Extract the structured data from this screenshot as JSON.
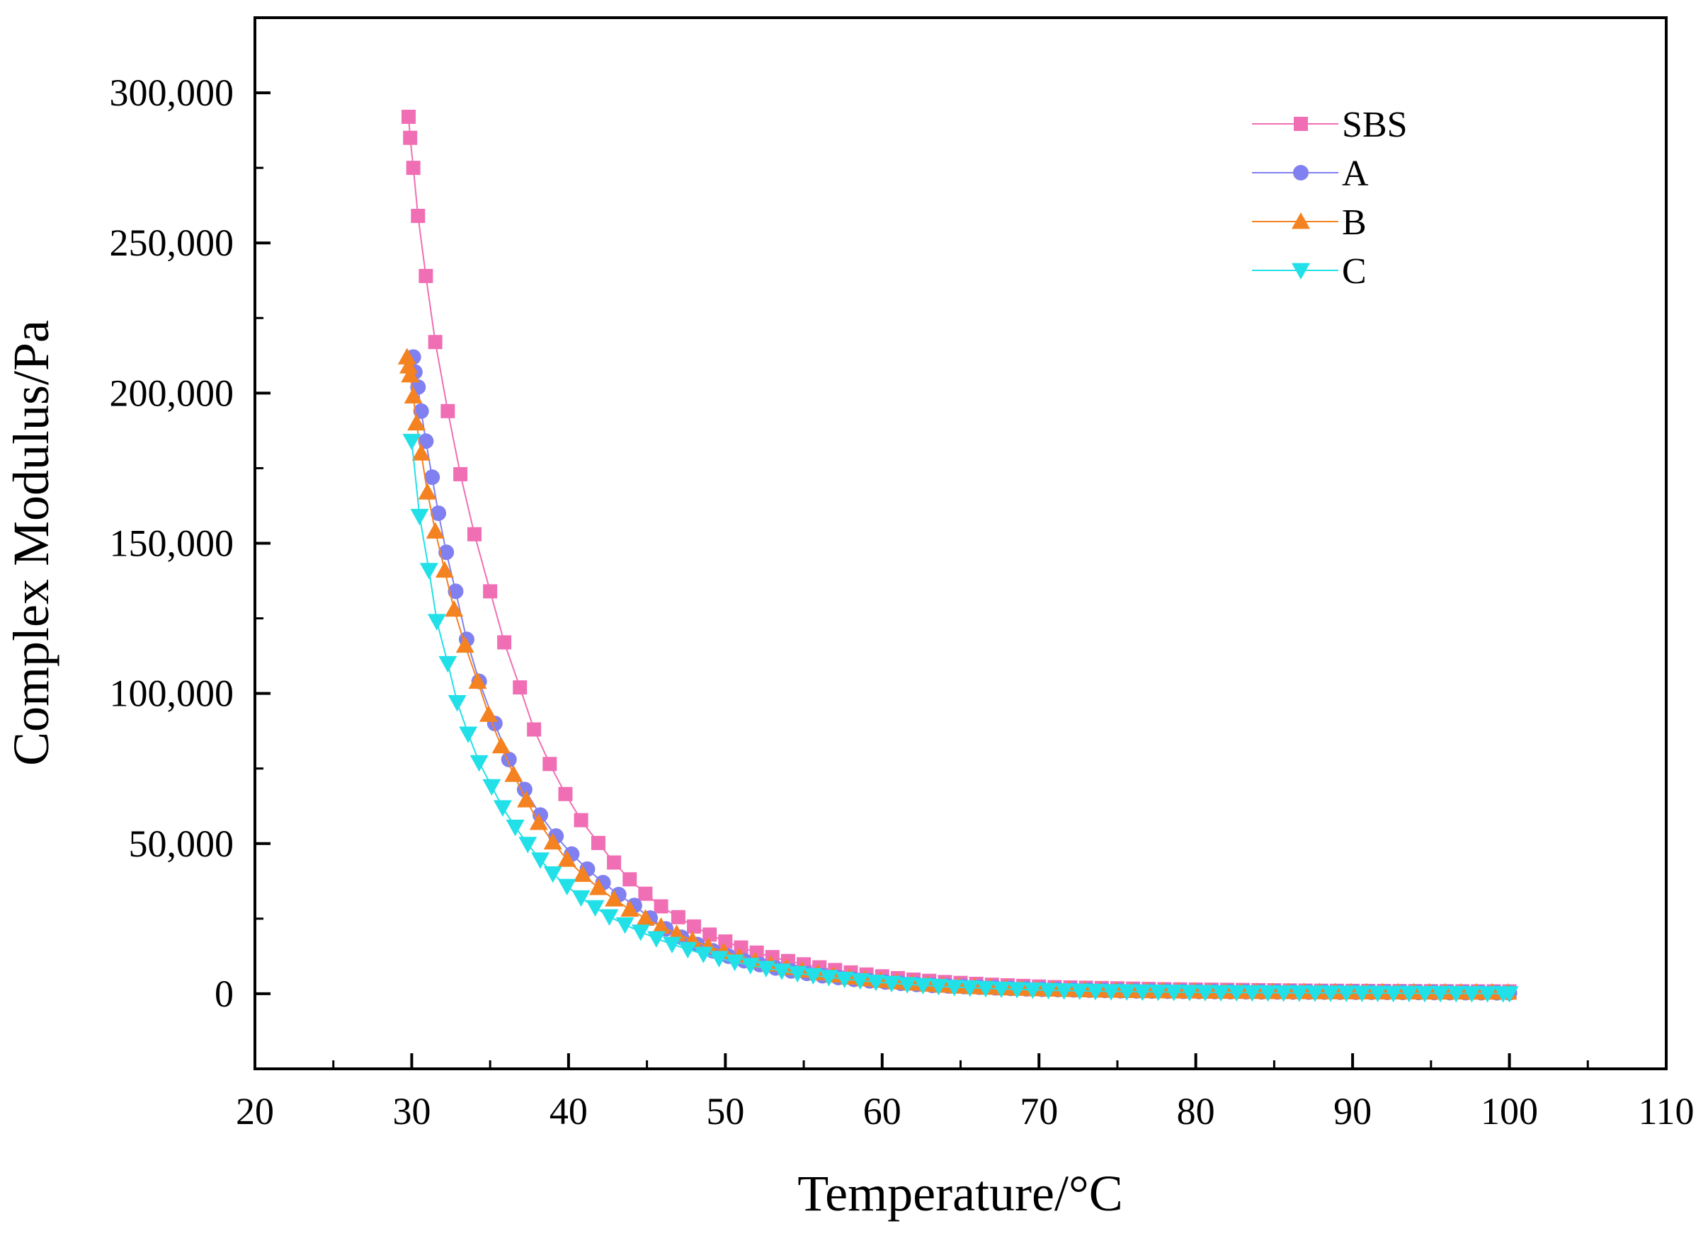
{
  "chart_data": {
    "type": "line",
    "title": "",
    "xlabel": "Temperature/°C",
    "ylabel": "Complex Modulus/Pa",
    "xlim": [
      20,
      110
    ],
    "ylim": [
      -25000,
      325000
    ],
    "xticks": [
      20,
      30,
      40,
      50,
      60,
      70,
      80,
      90,
      100,
      110
    ],
    "xtick_labels": [
      "20",
      "30",
      "40",
      "50",
      "60",
      "70",
      "80",
      "90",
      "100",
      "110"
    ],
    "yticks": [
      0,
      50000,
      100000,
      150000,
      200000,
      250000,
      300000
    ],
    "ytick_labels": [
      "0",
      "50,000",
      "100,000",
      "150,000",
      "200,000",
      "250,000",
      "300,000"
    ],
    "grid": false,
    "legend_position": "top-right",
    "series": [
      {
        "name": "SBS",
        "color": "#f06eb4",
        "marker": "square",
        "x": [
          29.8,
          29.9,
          30.1,
          30.4,
          30.9,
          31.5,
          32.3,
          33.1,
          34.0,
          35.0,
          35.9,
          36.9,
          37.8,
          38.8,
          39.8,
          40.8,
          41.9,
          42.9,
          43.9,
          44.9,
          45.9,
          47.0,
          48.0,
          49.0,
          50.0,
          51.0,
          52.0,
          53.0,
          54.0,
          55.0,
          56.0,
          57.0,
          58.0,
          59.0,
          60.0,
          61.0,
          62.0,
          63.0,
          64.0,
          65.0,
          66.0,
          67.0,
          68.0,
          69.0,
          70.0,
          71.0,
          72.0,
          73.0,
          74.0,
          75.0,
          76.0,
          77.0,
          78.0,
          79.0,
          80.0,
          81.0,
          82.0,
          83.0,
          84.0,
          85.0,
          86.0,
          87.0,
          88.0,
          89.0,
          90.0,
          91.0,
          92.0,
          93.0,
          94.0,
          95.0,
          96.0,
          97.0,
          98.0,
          99.0,
          100.0
        ],
        "y": [
          292000,
          285000,
          275000,
          259000,
          239000,
          217000,
          194000,
          173000,
          153000,
          134000,
          117000,
          102000,
          88000,
          76500,
          66500,
          57800,
          50200,
          43700,
          38100,
          33300,
          29100,
          25500,
          22400,
          19700,
          17400,
          15400,
          13700,
          12200,
          10900,
          9800,
          8800,
          7900,
          7100,
          6400,
          5800,
          5200,
          4700,
          4300,
          3900,
          3600,
          3300,
          3000,
          2800,
          2600,
          2400,
          2200,
          2100,
          2000,
          1900,
          1800,
          1700,
          1600,
          1500,
          1450,
          1400,
          1350,
          1300,
          1250,
          1200,
          1150,
          1100,
          1050,
          1000,
          980,
          960,
          940,
          920,
          900,
          880,
          860,
          840,
          820,
          800,
          790,
          780
        ]
      },
      {
        "name": "A",
        "color": "#8080f0",
        "marker": "circle",
        "x": [
          30.1,
          30.2,
          30.4,
          30.6,
          30.9,
          31.3,
          31.7,
          32.2,
          32.8,
          33.5,
          34.3,
          35.3,
          36.2,
          37.2,
          38.2,
          39.2,
          40.2,
          41.2,
          42.2,
          43.2,
          44.2,
          45.2,
          46.2,
          47.2,
          48.2,
          49.2,
          50.2,
          51.2,
          52.2,
          53.2,
          54.2,
          55.2,
          56.2,
          57.2,
          58.2,
          59.2,
          60.2,
          61.2,
          62.2,
          63.2,
          64.2,
          65.2,
          66.2,
          67.2,
          68.2,
          69.2,
          70.2,
          71.2,
          72.2,
          73.2,
          74.2,
          75.2,
          76.2,
          77.2,
          78.2,
          79.2,
          80.2,
          81.2,
          82.2,
          83.2,
          84.2,
          85.2,
          86.2,
          87.2,
          88.2,
          89.2,
          90.2,
          91.2,
          92.2,
          93.2,
          94.2,
          95.2,
          96.2,
          97.2,
          98.2,
          99.2,
          100.0
        ],
        "y": [
          212000,
          207000,
          202000,
          194000,
          184000,
          172000,
          160000,
          147000,
          134000,
          118000,
          104000,
          90000,
          78000,
          68000,
          59500,
          52500,
          46500,
          41500,
          37000,
          33000,
          29400,
          25200,
          21600,
          18800,
          16400,
          14300,
          12500,
          11000,
          9700,
          8600,
          7600,
          6800,
          6000,
          5400,
          4800,
          4300,
          3900,
          3500,
          3100,
          2800,
          2600,
          2400,
          2200,
          2000,
          1800,
          1650,
          1500,
          1400,
          1300,
          1200,
          1100,
          1000,
          950,
          900,
          850,
          800,
          760,
          720,
          690,
          660,
          630,
          600,
          580,
          560,
          540,
          520,
          500,
          480,
          460,
          440,
          420,
          400,
          380,
          360,
          340,
          320,
          300
        ]
      },
      {
        "name": "B",
        "color": "#f58220",
        "marker": "triangle-up",
        "x": [
          29.7,
          29.8,
          29.9,
          30.1,
          30.3,
          30.6,
          31.0,
          31.5,
          32.1,
          32.7,
          33.4,
          34.2,
          34.9,
          35.7,
          36.5,
          37.3,
          38.1,
          39.0,
          39.9,
          40.9,
          41.9,
          42.9,
          43.9,
          44.9,
          45.9,
          46.9,
          47.9,
          48.9,
          49.9,
          50.9,
          51.9,
          52.9,
          53.9,
          54.9,
          55.9,
          56.9,
          57.9,
          58.9,
          59.9,
          60.9,
          61.9,
          62.9,
          63.9,
          64.9,
          65.9,
          66.9,
          67.9,
          68.9,
          69.9,
          70.9,
          71.9,
          72.9,
          73.9,
          74.9,
          75.9,
          76.9,
          77.9,
          78.9,
          79.9,
          80.9,
          81.9,
          82.9,
          83.9,
          84.9,
          85.9,
          86.9,
          87.9,
          88.9,
          89.9,
          90.9,
          91.9,
          92.9,
          93.9,
          94.9,
          95.9,
          96.9,
          97.9,
          98.9,
          99.9
        ],
        "y": [
          212000,
          209000,
          206000,
          199000,
          190000,
          180000,
          167000,
          154000,
          141000,
          128000,
          116000,
          104000,
          93000,
          82500,
          73000,
          64500,
          57000,
          50500,
          44700,
          39700,
          35300,
          31500,
          28100,
          25100,
          22400,
          20000,
          17800,
          15800,
          14000,
          12400,
          11000,
          9800,
          8700,
          7800,
          6900,
          6200,
          5500,
          4900,
          4400,
          3900,
          3500,
          3100,
          2800,
          2500,
          2300,
          2100,
          1900,
          1750,
          1600,
          1480,
          1370,
          1270,
          1180,
          1100,
          1030,
          970,
          920,
          870,
          830,
          790,
          760,
          730,
          700,
          680,
          660,
          640,
          620,
          600,
          580,
          570,
          560,
          550,
          540,
          530,
          520,
          510,
          500,
          490,
          480
        ]
      },
      {
        "name": "C",
        "color": "#22e0e8",
        "marker": "triangle-down",
        "x": [
          30.0,
          30.5,
          31.1,
          31.6,
          32.3,
          32.9,
          33.6,
          34.3,
          35.1,
          35.8,
          36.6,
          37.4,
          38.2,
          39.0,
          39.9,
          40.8,
          41.7,
          42.6,
          43.6,
          44.6,
          45.6,
          46.6,
          47.6,
          48.6,
          49.6,
          50.6,
          51.6,
          52.6,
          53.6,
          54.6,
          55.6,
          56.6,
          57.6,
          58.6,
          59.6,
          60.6,
          61.6,
          62.6,
          63.6,
          64.6,
          65.6,
          66.6,
          67.6,
          68.6,
          69.6,
          70.6,
          71.6,
          72.6,
          73.6,
          74.6,
          75.6,
          76.6,
          77.6,
          78.6,
          79.6,
          80.6,
          81.6,
          82.6,
          83.6,
          84.6,
          85.6,
          86.6,
          87.6,
          88.6,
          89.6,
          90.6,
          91.6,
          92.6,
          93.6,
          94.6,
          95.6,
          96.6,
          97.6,
          98.6,
          99.6,
          100.0
        ],
        "y": [
          184000,
          159000,
          141000,
          124000,
          110000,
          97000,
          86500,
          77000,
          69000,
          62000,
          55500,
          49800,
          44600,
          40000,
          35800,
          32000,
          28700,
          25700,
          23000,
          20600,
          18400,
          16500,
          14800,
          13200,
          11800,
          10600,
          9500,
          8500,
          7600,
          6800,
          6100,
          5500,
          4900,
          4400,
          3900,
          3500,
          3100,
          2800,
          2500,
          2200,
          2000,
          1800,
          1600,
          1450,
          1300,
          1150,
          1050,
          950,
          850,
          780,
          720,
          660,
          610,
          560,
          520,
          480,
          450,
          420,
          390,
          360,
          340,
          320,
          300,
          280,
          260,
          240,
          220,
          200,
          180,
          160,
          140,
          120,
          100,
          90,
          80,
          70
        ]
      }
    ]
  }
}
